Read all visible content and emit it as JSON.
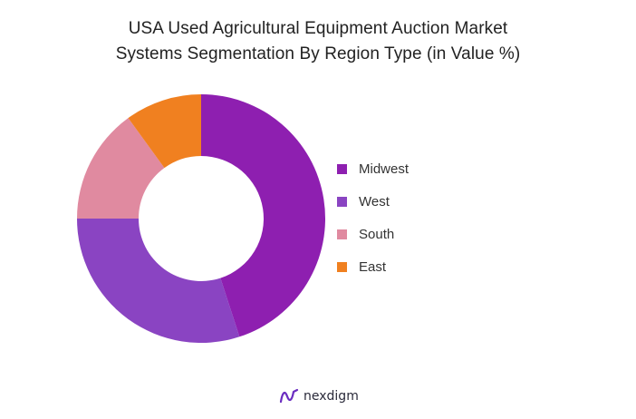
{
  "chart_data": {
    "type": "pie",
    "variant": "donut",
    "title_lines": [
      "USA Used Agricultural Equipment Auction Market",
      "Systems Segmentation By Region Type (in Value %)"
    ],
    "categories": [
      "Midwest",
      "West",
      "South",
      "East"
    ],
    "values": [
      45,
      30,
      15,
      10
    ],
    "colors": [
      "#8e1fb0",
      "#8a44c2",
      "#e08aa0",
      "#f08020"
    ],
    "legend_position": "right",
    "start_angle_deg": 0,
    "direction": "clockwise"
  },
  "brand": {
    "logo_icon": "nexdigm-logo-icon",
    "name": "nexdigm",
    "color": "#6a2cc0"
  }
}
